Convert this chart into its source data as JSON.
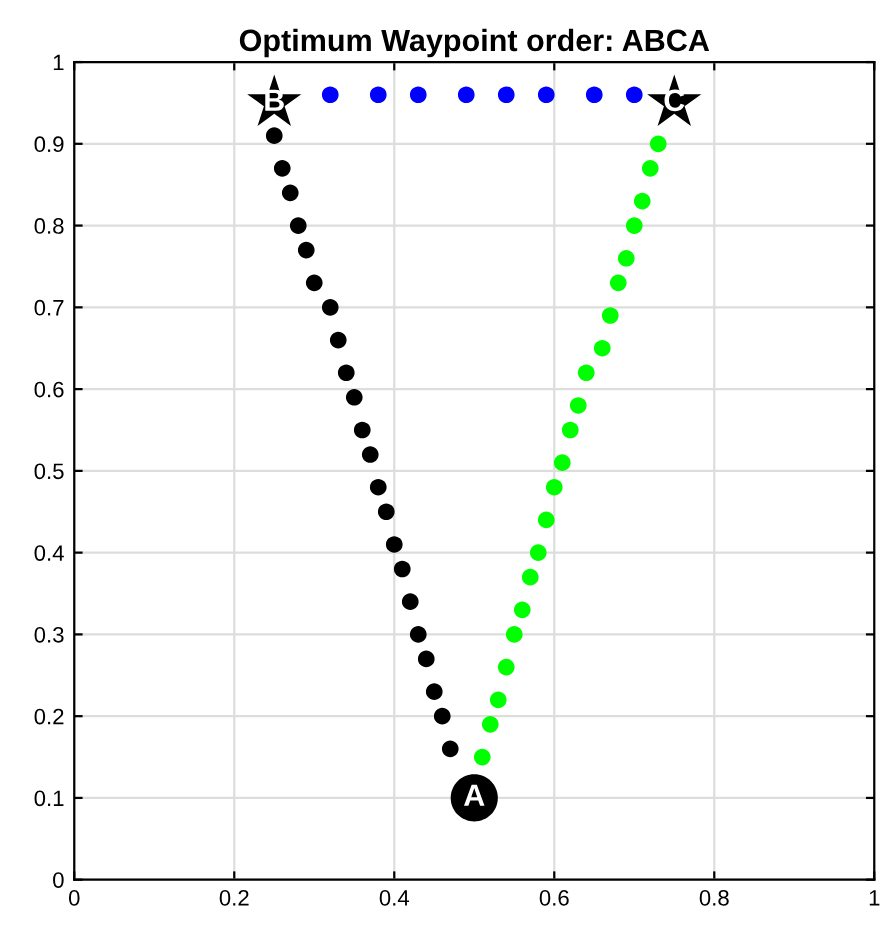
{
  "chart_data": {
    "type": "scatter",
    "title": "Optimum Waypoint order: ABCA",
    "xlim": [
      0,
      1
    ],
    "ylim": [
      0,
      1
    ],
    "xticks": [
      0,
      0.2,
      0.4,
      0.6,
      0.8,
      1
    ],
    "yticks": [
      0,
      0.1,
      0.2,
      0.3,
      0.4,
      0.5,
      0.6,
      0.7,
      0.8,
      0.9,
      1
    ],
    "grid": true,
    "marker": "circle",
    "series": [
      {
        "color": "#000000",
        "x": [
          0.25,
          0.26,
          0.27,
          0.28,
          0.29,
          0.3,
          0.32,
          0.33,
          0.34,
          0.35,
          0.36,
          0.37,
          0.38,
          0.39,
          0.4,
          0.41,
          0.42,
          0.43,
          0.44,
          0.45,
          0.46,
          0.47
        ],
        "values": [
          0.91,
          0.87,
          0.84,
          0.8,
          0.77,
          0.73,
          0.7,
          0.66,
          0.62,
          0.59,
          0.55,
          0.52,
          0.48,
          0.45,
          0.41,
          0.38,
          0.34,
          0.3,
          0.27,
          0.23,
          0.2,
          0.16
        ]
      },
      {
        "color": "#0000ff",
        "x": [
          0.32,
          0.38,
          0.43,
          0.49,
          0.54,
          0.59,
          0.65,
          0.7
        ],
        "values": [
          0.96,
          0.96,
          0.96,
          0.96,
          0.96,
          0.96,
          0.96,
          0.96
        ]
      },
      {
        "color": "#00ff00",
        "x": [
          0.51,
          0.52,
          0.53,
          0.54,
          0.55,
          0.56,
          0.57,
          0.58,
          0.59,
          0.6,
          0.61,
          0.62,
          0.63,
          0.64,
          0.66,
          0.67,
          0.68,
          0.69,
          0.7,
          0.71,
          0.72,
          0.73
        ],
        "values": [
          0.15,
          0.19,
          0.22,
          0.26,
          0.3,
          0.33,
          0.37,
          0.4,
          0.44,
          0.48,
          0.51,
          0.55,
          0.58,
          0.62,
          0.65,
          0.69,
          0.73,
          0.76,
          0.8,
          0.83,
          0.87,
          0.9
        ]
      },
      {
        "color": "#000000",
        "marker": "star",
        "x": [
          0.25,
          0.75
        ],
        "values": [
          0.95,
          0.95
        ]
      },
      {
        "color": "#000000",
        "marker": "circle",
        "x": [
          0.5
        ],
        "values": [
          0.1
        ]
      }
    ],
    "annotations": [
      {
        "text": "A",
        "x": 0.5,
        "y": 0.1
      },
      {
        "text": "B",
        "x": 0.25,
        "y": 0.95
      },
      {
        "text": "C",
        "x": 0.75,
        "y": 0.95
      }
    ]
  }
}
